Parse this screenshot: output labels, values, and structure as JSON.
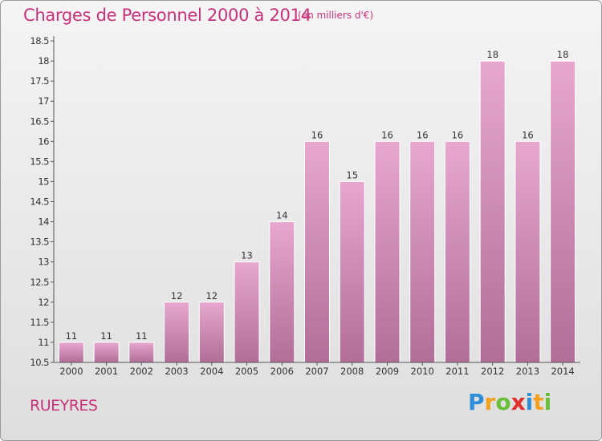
{
  "title": "Charges de Personnel 2000 à 2014",
  "subtitle": "(en milliers d'€)",
  "city": "RUEYRES",
  "logo": {
    "text": "Proxiti",
    "letters": [
      {
        "char": "P",
        "color": "#2e8fd8"
      },
      {
        "char": "r",
        "color": "#f2a21e"
      },
      {
        "char": "o",
        "color": "#6abf3a"
      },
      {
        "char": "x",
        "color": "#e2302d"
      },
      {
        "char": "i",
        "color": "#2e8fd8"
      },
      {
        "char": "t",
        "color": "#f2a21e"
      },
      {
        "char": "i",
        "color": "#6abf3a"
      }
    ]
  },
  "colors": {
    "accent": "#c8327a",
    "bar_top": "#e8a7cf",
    "bar_bottom": "#b06e98",
    "bar_edge": "#ffffff",
    "axis": "#555555"
  },
  "chart_data": {
    "type": "bar",
    "categories": [
      "2000",
      "2001",
      "2002",
      "2003",
      "2004",
      "2005",
      "2006",
      "2007",
      "2008",
      "2009",
      "2010",
      "2011",
      "2012",
      "2013",
      "2014"
    ],
    "values": [
      11,
      11,
      11,
      12,
      12,
      13,
      14,
      16,
      15,
      16,
      16,
      16,
      18,
      16,
      18
    ],
    "ylim": [
      10.5,
      18.5
    ],
    "yticks": [
      10.5,
      11,
      11.5,
      12,
      12.5,
      13,
      13.5,
      14,
      14.5,
      15,
      15.5,
      16,
      16.5,
      17,
      17.5,
      18,
      18.5
    ],
    "grid": false,
    "xlabel": "",
    "ylabel": ""
  }
}
